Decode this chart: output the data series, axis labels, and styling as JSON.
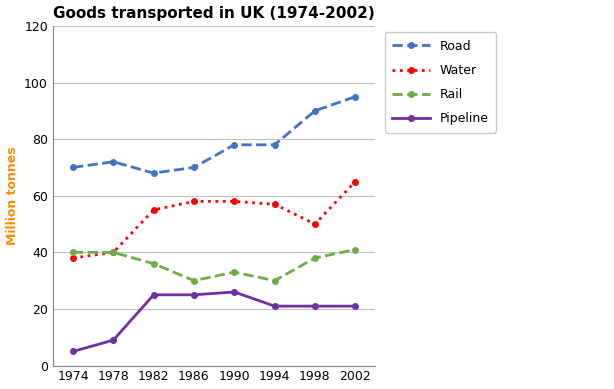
{
  "title": "Goods transported in UK (1974-2002)",
  "ylabel": "Million tonnes",
  "years": [
    1974,
    1978,
    1982,
    1986,
    1990,
    1994,
    1998,
    2002
  ],
  "series": {
    "Road": {
      "values": [
        70,
        72,
        68,
        70,
        78,
        78,
        90,
        95
      ],
      "color": "#4472C4",
      "linestyle": "--",
      "linewidth": 2.0,
      "marker": "o",
      "markersize": 4
    },
    "Water": {
      "values": [
        38,
        40,
        55,
        58,
        58,
        57,
        50,
        65
      ],
      "color": "#FF0000",
      "linestyle": ":",
      "linewidth": 2.0,
      "marker": "o",
      "markersize": 4
    },
    "Rail": {
      "values": [
        40,
        40,
        36,
        30,
        33,
        30,
        38,
        41
      ],
      "color": "#70AD47",
      "linestyle": "--",
      "linewidth": 2.0,
      "marker": "o",
      "markersize": 4
    },
    "Pipeline": {
      "values": [
        5,
        9,
        25,
        25,
        26,
        21,
        21,
        21
      ],
      "color": "#7030A0",
      "linestyle": "-",
      "linewidth": 2.0,
      "marker": "o",
      "markersize": 4
    }
  },
  "ylim": [
    0,
    120
  ],
  "yticks": [
    0,
    20,
    40,
    60,
    80,
    100,
    120
  ],
  "xticks": [
    1974,
    1978,
    1982,
    1986,
    1990,
    1994,
    1998,
    2002
  ],
  "title_fontsize": 11,
  "ylabel_fontsize": 9,
  "ylabel_color": "#FF8C00",
  "background_color": "#FFFFFF",
  "plot_bg_color": "#FFFFFF",
  "grid_color": "#C0C0C0",
  "spine_color": "#808080",
  "tick_fontsize": 9,
  "legend_fontsize": 9
}
